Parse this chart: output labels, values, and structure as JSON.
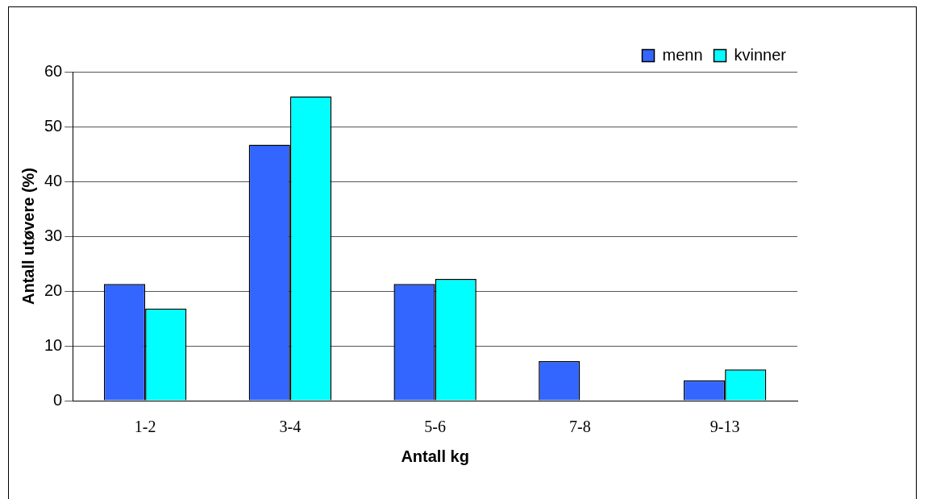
{
  "chart_data": {
    "type": "bar",
    "xlabel": "Antall kg",
    "ylabel": "Antall utøvere (%)",
    "categories": [
      "1-2",
      "3-4",
      "5-6",
      "7-8",
      "9-13"
    ],
    "series": [
      {
        "name": "menn",
        "color": "#3366ff",
        "values": [
          21.3,
          46.7,
          21.3,
          7.2,
          3.7
        ]
      },
      {
        "name": "kvinner",
        "color": "#00ffff",
        "values": [
          16.8,
          55.5,
          22.2,
          0,
          5.7
        ]
      }
    ],
    "ylim": [
      0,
      60
    ],
    "yticks": [
      0,
      10,
      20,
      30,
      40,
      50,
      60
    ],
    "grid": "y",
    "legend": "top right"
  }
}
